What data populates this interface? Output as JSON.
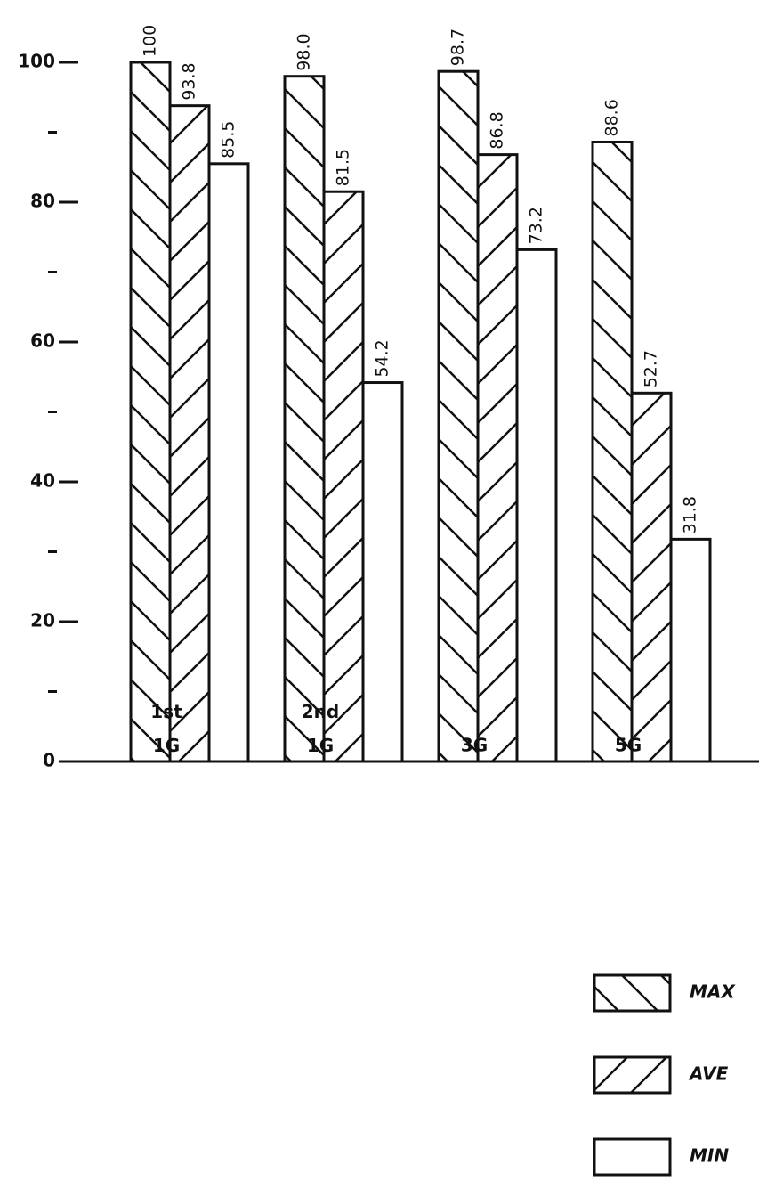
{
  "chart_data": {
    "type": "bar",
    "categories": [
      "1st 1G",
      "2nd 1G",
      "3G",
      "5G"
    ],
    "series": [
      {
        "name": "MAX",
        "color": "#111111",
        "hatch": "back-diagonal",
        "values": [
          100,
          98.0,
          98.7,
          88.6
        ],
        "value_labels": [
          "100",
          "98.0",
          "98.7",
          "88.6"
        ]
      },
      {
        "name": "AVE",
        "color": "#111111",
        "hatch": "diagonal",
        "values": [
          93.8,
          81.5,
          86.8,
          52.7
        ],
        "value_labels": [
          "93.8",
          "81.5",
          "86.8",
          "52.7"
        ]
      },
      {
        "name": "MIN",
        "color": "#111111",
        "hatch": "none",
        "values": [
          85.5,
          54.2,
          73.2,
          31.8
        ],
        "value_labels": [
          "85.5",
          "54.2",
          "73.2",
          "31.8"
        ]
      }
    ],
    "ylim": [
      0,
      100
    ],
    "yticks": [
      0,
      20,
      40,
      60,
      80,
      100
    ],
    "yminorticks": [
      10,
      30,
      50,
      70,
      90
    ],
    "grid": false,
    "legend": "bottom-right"
  }
}
